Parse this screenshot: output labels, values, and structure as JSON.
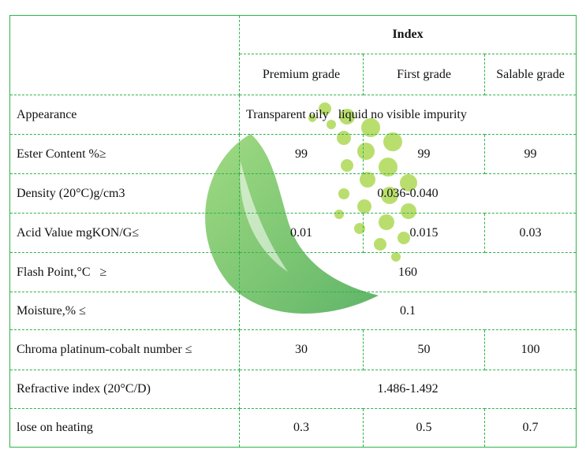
{
  "header": {
    "index_title": "Index",
    "grades": [
      "Premium grade",
      "First grade",
      "Salable grade"
    ]
  },
  "rows": [
    {
      "label": "Appearance",
      "merged": "Transparent oily   liquid no visible impurity"
    },
    {
      "label": "Ester Content %≥",
      "values": [
        "99",
        "99",
        "99"
      ]
    },
    {
      "label": "Density (20°C)g/cm3",
      "merged": "0.036-0.040"
    },
    {
      "label": "Acid Value mgKON/G≤",
      "values": [
        "0.01",
        "0.015",
        "0.03"
      ]
    },
    {
      "label": "Flash Point,°C   ≥",
      "merged": "160"
    },
    {
      "label": "Moisture,% ≤",
      "merged": "0.1"
    },
    {
      "label": "Chroma platinum-cobalt number ≤",
      "values": [
        "30",
        "50",
        "100"
      ]
    },
    {
      "label": "Refractive index (20°C/D)",
      "merged": "1.486-1.492"
    },
    {
      "label": "lose on heating",
      "values": [
        "0.3",
        "0.5",
        "0.7"
      ]
    }
  ],
  "colors": {
    "border": "#2fb34a",
    "leaf_dark": "#2e9e3a",
    "leaf_light": "#6cc24a",
    "dots": "#a8d64a"
  },
  "watermark": {
    "icon": "leaf-logo-icon"
  }
}
